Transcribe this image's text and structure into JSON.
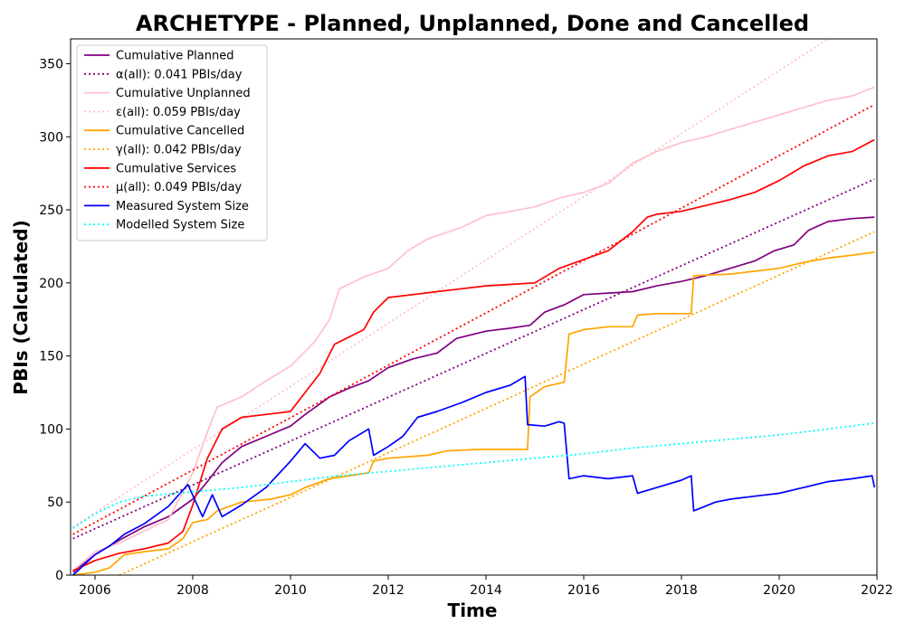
{
  "chart_data": {
    "type": "line",
    "title": "ARCHETYPE - Planned, Unplanned, Done  and Cancelled",
    "xlabel": "Time",
    "ylabel": "PBIs (Calculated)",
    "xlim": [
      2005.5,
      2022.0
    ],
    "ylim": [
      0,
      367
    ],
    "x_ticks": [
      "2006",
      "2008",
      "2010",
      "2012",
      "2014",
      "2016",
      "2018",
      "2020",
      "2022"
    ],
    "x_tick_values": [
      2006,
      2008,
      2010,
      2012,
      2014,
      2016,
      2018,
      2020,
      2022
    ],
    "y_ticks": [
      "0",
      "50",
      "100",
      "150",
      "200",
      "250",
      "300",
      "350"
    ],
    "y_tick_values": [
      0,
      50,
      100,
      150,
      200,
      250,
      300,
      350
    ],
    "legend_position": "top-left",
    "grid": false,
    "series": [
      {
        "name": "Cumulative Planned",
        "style": "solid",
        "color": "#800080",
        "x": [
          2005.55,
          2006.0,
          2006.5,
          2007.0,
          2007.5,
          2008.0,
          2008.3,
          2008.6,
          2009.0,
          2009.5,
          2010.0,
          2010.3,
          2010.8,
          2011.2,
          2011.6,
          2012.0,
          2012.5,
          2013.0,
          2013.4,
          2014.0,
          2014.5,
          2014.9,
          2015.2,
          2015.6,
          2016.0,
          2016.5,
          2017.0,
          2017.5,
          2018.0,
          2018.5,
          2019.0,
          2019.5,
          2019.9,
          2020.3,
          2020.6,
          2021.0,
          2021.5,
          2021.95
        ],
        "y": [
          2,
          14,
          24,
          33,
          40,
          52,
          64,
          77,
          88,
          95,
          102,
          110,
          122,
          128,
          133,
          142,
          148,
          152,
          162,
          167,
          169,
          171,
          180,
          185,
          192,
          193,
          194,
          198,
          201,
          205,
          210,
          215,
          222,
          226,
          236,
          242,
          244,
          245
        ]
      },
      {
        "name": "α(all): 0.041 PBIs/day",
        "style": "dotted",
        "color": "#800080",
        "x": [
          2005.55,
          2021.95
        ],
        "y": [
          25,
          271
        ]
      },
      {
        "name": "Cumulative Unplanned",
        "style": "solid",
        "color": "#ffc0cb",
        "x": [
          2005.55,
          2006.0,
          2006.5,
          2007.0,
          2007.5,
          2008.0,
          2008.3,
          2008.5,
          2009.0,
          2009.5,
          2010.0,
          2010.5,
          2010.8,
          2011.0,
          2011.5,
          2012.0,
          2012.4,
          2012.8,
          2013.5,
          2014.0,
          2014.5,
          2015.0,
          2015.5,
          2016.0,
          2016.5,
          2017.0,
          2017.5,
          2018.0,
          2018.5,
          2019.0,
          2019.5,
          2020.0,
          2020.5,
          2021.0,
          2021.5,
          2021.95
        ],
        "y": [
          3,
          16,
          22,
          30,
          38,
          70,
          98,
          115,
          122,
          133,
          143,
          160,
          175,
          196,
          204,
          210,
          222,
          230,
          238,
          246,
          249,
          252,
          258,
          262,
          268,
          282,
          290,
          296,
          300,
          305,
          310,
          315,
          320,
          325,
          328,
          334
        ]
      },
      {
        "name": "ε(all): 0.059 PBIs/day",
        "style": "dotted",
        "color": "#ffc0cb",
        "x": [
          2005.55,
          2021.0
        ],
        "y": [
          33,
          367
        ]
      },
      {
        "name": "Cumulative Cancelled",
        "style": "solid",
        "color": "#ffa500",
        "x": [
          2005.55,
          2006.0,
          2006.3,
          2006.6,
          2007.0,
          2007.5,
          2007.8,
          2008.0,
          2008.3,
          2008.5,
          2009.0,
          2009.6,
          2010.0,
          2010.3,
          2010.8,
          2011.2,
          2011.6,
          2011.7,
          2012.0,
          2012.8,
          2013.2,
          2013.8,
          2014.5,
          2014.85,
          2014.9,
          2015.2,
          2015.6,
          2015.7,
          2016.0,
          2016.5,
          2017.0,
          2017.1,
          2017.5,
          2018.2,
          2018.25,
          2019.0,
          2019.5,
          2020.0,
          2020.5,
          2021.0,
          2021.5,
          2021.95
        ],
        "y": [
          0,
          2,
          5,
          14,
          16,
          18,
          25,
          36,
          38,
          44,
          50,
          52,
          55,
          60,
          66,
          68,
          70,
          78,
          80,
          82,
          85,
          86,
          86,
          86,
          122,
          129,
          132,
          165,
          168,
          170,
          170,
          178,
          179,
          179,
          205,
          206,
          208,
          210,
          214,
          217,
          219,
          221
        ]
      },
      {
        "name": "γ(all): 0.042 PBIs/day",
        "style": "dotted",
        "color": "#ffa500",
        "x": [
          2006.5,
          2021.95
        ],
        "y": [
          0,
          235
        ]
      },
      {
        "name": "Cumulative Services",
        "style": "solid",
        "color": "#ff0000",
        "x": [
          2005.55,
          2006.0,
          2006.5,
          2007.0,
          2007.5,
          2007.8,
          2008.0,
          2008.3,
          2008.6,
          2009.0,
          2009.5,
          2010.0,
          2010.3,
          2010.6,
          2010.9,
          2011.2,
          2011.5,
          2011.7,
          2012.0,
          2012.5,
          2013.0,
          2013.5,
          2014.0,
          2014.5,
          2015.0,
          2015.5,
          2016.0,
          2016.5,
          2017.0,
          2017.3,
          2017.5,
          2018.0,
          2018.5,
          2019.0,
          2019.5,
          2020.0,
          2020.5,
          2021.0,
          2021.5,
          2021.95
        ],
        "y": [
          3,
          10,
          15,
          18,
          22,
          30,
          48,
          80,
          100,
          108,
          110,
          112,
          125,
          138,
          158,
          163,
          168,
          180,
          190,
          192,
          194,
          196,
          198,
          199,
          200,
          210,
          216,
          222,
          235,
          245,
          247,
          249,
          253,
          257,
          262,
          270,
          280,
          287,
          290,
          298
        ]
      },
      {
        "name": "μ(all): 0.049 PBIs/day",
        "style": "dotted",
        "color": "#ff0000",
        "x": [
          2005.55,
          2021.95
        ],
        "y": [
          28,
          322
        ]
      },
      {
        "name": "Measured System Size",
        "style": "solid",
        "color": "#0000ff",
        "x": [
          2005.55,
          2006.0,
          2006.3,
          2006.6,
          2007.0,
          2007.5,
          2007.9,
          2008.2,
          2008.4,
          2008.6,
          2009.0,
          2009.5,
          2010.0,
          2010.3,
          2010.6,
          2010.9,
          2011.2,
          2011.6,
          2011.7,
          2012.0,
          2012.3,
          2012.6,
          2013.0,
          2013.5,
          2014.0,
          2014.5,
          2014.8,
          2014.85,
          2015.2,
          2015.5,
          2015.6,
          2015.7,
          2016.0,
          2016.5,
          2017.0,
          2017.1,
          2017.5,
          2018.0,
          2018.2,
          2018.25,
          2018.7,
          2019.0,
          2019.5,
          2020.0,
          2020.5,
          2021.0,
          2021.5,
          2021.9,
          2021.95
        ],
        "y": [
          0,
          14,
          20,
          28,
          35,
          47,
          62,
          40,
          55,
          40,
          48,
          60,
          78,
          90,
          80,
          82,
          92,
          100,
          82,
          88,
          95,
          108,
          112,
          118,
          125,
          130,
          136,
          103,
          102,
          105,
          104,
          66,
          68,
          66,
          68,
          56,
          60,
          65,
          68,
          44,
          50,
          52,
          54,
          56,
          60,
          64,
          66,
          68,
          60
        ]
      },
      {
        "name": "Modelled System Size",
        "style": "dotted",
        "color": "#00ffff",
        "x": [
          2005.55,
          2006.0,
          2006.5,
          2007.0,
          2008.0,
          2009.0,
          2010.0,
          2011.0,
          2012.0,
          2013.0,
          2014.0,
          2015.0,
          2016.0,
          2017.0,
          2018.0,
          2019.0,
          2020.0,
          2021.0,
          2021.95
        ],
        "y": [
          32,
          42,
          50,
          54,
          57,
          60,
          64,
          68,
          71,
          74,
          77,
          80,
          83,
          87,
          90,
          93,
          96,
          100,
          104
        ]
      }
    ]
  }
}
